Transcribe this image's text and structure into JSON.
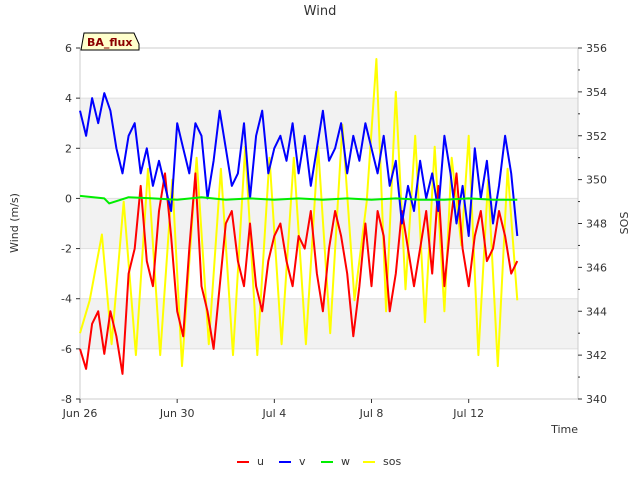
{
  "chart_data": {
    "type": "line",
    "title": "Wind",
    "site_label": "BA_flux",
    "xlabel": "Time",
    "ylabel": "Wind (m/s)",
    "y2label": "SOS",
    "xlim": [
      0,
      20.5
    ],
    "ylim": [
      -8,
      6
    ],
    "y2lim": [
      340,
      356
    ],
    "x_ticks": [
      {
        "label": "Jun 26",
        "day": 0
      },
      {
        "label": "Jun 30",
        "day": 4
      },
      {
        "label": "Jul 4",
        "day": 8
      },
      {
        "label": "Jul 8",
        "day": 12
      },
      {
        "label": "Jul 12",
        "day": 16
      }
    ],
    "y_ticks": [
      -8,
      -6,
      -4,
      -2,
      0,
      2,
      4,
      6
    ],
    "y2_ticks": [
      340,
      342,
      344,
      346,
      348,
      350,
      352,
      354,
      356
    ],
    "grid": "horizontal bands",
    "legend_position": "bottom",
    "series": [
      {
        "name": "u",
        "axis": "left",
        "color": "#ff0000",
        "x": [
          0.0,
          0.25,
          0.5,
          0.75,
          1.0,
          1.25,
          1.5,
          1.75,
          2.0,
          2.25,
          2.5,
          2.75,
          3.0,
          3.25,
          3.5,
          3.75,
          4.0,
          4.25,
          4.5,
          4.75,
          5.0,
          5.25,
          5.5,
          5.75,
          6.0,
          6.25,
          6.5,
          6.75,
          7.0,
          7.25,
          7.5,
          7.75,
          8.0,
          8.25,
          8.5,
          8.75,
          9.0,
          9.25,
          9.5,
          9.75,
          10.0,
          10.25,
          10.5,
          10.75,
          11.0,
          11.25,
          11.5,
          11.75,
          12.0,
          12.25,
          12.5,
          12.75,
          13.0,
          13.25,
          13.5,
          13.75,
          14.0,
          14.25,
          14.5,
          14.75,
          15.0,
          15.25,
          15.5,
          15.75,
          16.0,
          16.25,
          16.5,
          16.75,
          17.0,
          17.25,
          17.5,
          17.75,
          18.0
        ],
        "values": [
          -6.0,
          -6.8,
          -5.0,
          -4.5,
          -6.2,
          -4.5,
          -5.5,
          -7.0,
          -3.0,
          -2.0,
          0.5,
          -2.5,
          -3.5,
          -0.5,
          1.0,
          -1.5,
          -4.5,
          -5.5,
          -2.0,
          1.0,
          -3.5,
          -4.5,
          -6.0,
          -3.5,
          -1.0,
          -0.5,
          -2.5,
          -3.5,
          -1.0,
          -3.5,
          -4.5,
          -2.5,
          -1.5,
          -1.0,
          -2.5,
          -3.5,
          -1.5,
          -2.0,
          -0.5,
          -3.0,
          -4.5,
          -2.0,
          -0.5,
          -1.5,
          -3.0,
          -5.5,
          -3.5,
          -1.0,
          -3.5,
          -0.5,
          -1.5,
          -4.5,
          -3.0,
          -0.5,
          -2.0,
          -3.5,
          -2.0,
          -0.5,
          -3.0,
          0.5,
          -3.5,
          -1.0,
          1.0,
          -2.0,
          -3.5,
          -1.5,
          -0.5,
          -2.5,
          -2.0,
          -0.5,
          -1.5,
          -3.0,
          -2.5
        ]
      },
      {
        "name": "v",
        "axis": "left",
        "color": "#0000ff",
        "x": [
          0.0,
          0.25,
          0.5,
          0.75,
          1.0,
          1.25,
          1.5,
          1.75,
          2.0,
          2.25,
          2.5,
          2.75,
          3.0,
          3.25,
          3.5,
          3.75,
          4.0,
          4.25,
          4.5,
          4.75,
          5.0,
          5.25,
          5.5,
          5.75,
          6.0,
          6.25,
          6.5,
          6.75,
          7.0,
          7.25,
          7.5,
          7.75,
          8.0,
          8.25,
          8.5,
          8.75,
          9.0,
          9.25,
          9.5,
          9.75,
          10.0,
          10.25,
          10.5,
          10.75,
          11.0,
          11.25,
          11.5,
          11.75,
          12.0,
          12.25,
          12.5,
          12.75,
          13.0,
          13.25,
          13.5,
          13.75,
          14.0,
          14.25,
          14.5,
          14.75,
          15.0,
          15.25,
          15.5,
          15.75,
          16.0,
          16.25,
          16.5,
          16.75,
          17.0,
          17.25,
          17.5,
          17.75,
          18.0
        ],
        "values": [
          3.5,
          2.5,
          4.0,
          3.0,
          4.2,
          3.5,
          2.0,
          1.0,
          2.5,
          3.0,
          1.0,
          2.0,
          0.5,
          1.5,
          0.5,
          -0.5,
          3.0,
          2.0,
          1.0,
          3.0,
          2.5,
          0.0,
          1.5,
          3.5,
          2.0,
          0.5,
          1.0,
          3.0,
          0.0,
          2.5,
          3.5,
          1.0,
          2.0,
          2.5,
          1.5,
          3.0,
          1.0,
          2.5,
          0.5,
          2.0,
          3.5,
          1.5,
          2.0,
          3.0,
          1.0,
          2.5,
          1.5,
          3.0,
          2.0,
          1.0,
          2.5,
          0.5,
          1.5,
          -1.0,
          0.5,
          -0.5,
          1.5,
          0.0,
          1.0,
          -0.5,
          2.5,
          1.0,
          -1.0,
          0.5,
          -1.5,
          2.0,
          0.0,
          1.5,
          -1.0,
          0.5,
          2.5,
          1.0,
          -1.5
        ]
      },
      {
        "name": "w",
        "axis": "left",
        "color": "#00ee00",
        "x": [
          0.0,
          1.0,
          1.2,
          2.0,
          3.0,
          4.0,
          5.0,
          6.0,
          7.0,
          8.0,
          9.0,
          10.0,
          11.0,
          12.0,
          13.0,
          14.0,
          15.0,
          16.0,
          17.0,
          18.0
        ],
        "values": [
          0.1,
          0.0,
          -0.2,
          0.05,
          0.0,
          -0.05,
          0.05,
          -0.05,
          0.0,
          -0.05,
          0.0,
          -0.05,
          0.0,
          -0.05,
          0.0,
          -0.05,
          -0.05,
          0.0,
          -0.05,
          -0.05
        ]
      },
      {
        "name": "sos",
        "axis": "right",
        "color": "#ffff00",
        "x": [
          0.0,
          0.4,
          0.9,
          1.3,
          1.8,
          2.3,
          2.8,
          3.3,
          3.8,
          4.2,
          4.8,
          5.3,
          5.8,
          6.3,
          6.8,
          7.3,
          7.8,
          8.3,
          8.8,
          9.3,
          9.8,
          10.3,
          10.8,
          11.3,
          11.8,
          12.2,
          12.6,
          13.0,
          13.4,
          13.8,
          14.2,
          14.6,
          15.0,
          15.3,
          15.7,
          16.0,
          16.4,
          16.8,
          17.2,
          17.6,
          18.0
        ],
        "values": [
          343.0,
          344.5,
          347.5,
          342.5,
          349.0,
          342.0,
          350.5,
          342.0,
          350.0,
          341.5,
          351.0,
          342.5,
          350.5,
          342.0,
          351.5,
          342.0,
          351.0,
          342.5,
          351.0,
          342.5,
          351.5,
          343.0,
          352.5,
          344.5,
          349.0,
          355.5,
          344.0,
          354.0,
          345.0,
          352.0,
          343.5,
          351.5,
          344.0,
          351.0,
          347.0,
          352.0,
          342.0,
          350.0,
          341.5,
          350.5,
          344.5
        ]
      }
    ]
  }
}
